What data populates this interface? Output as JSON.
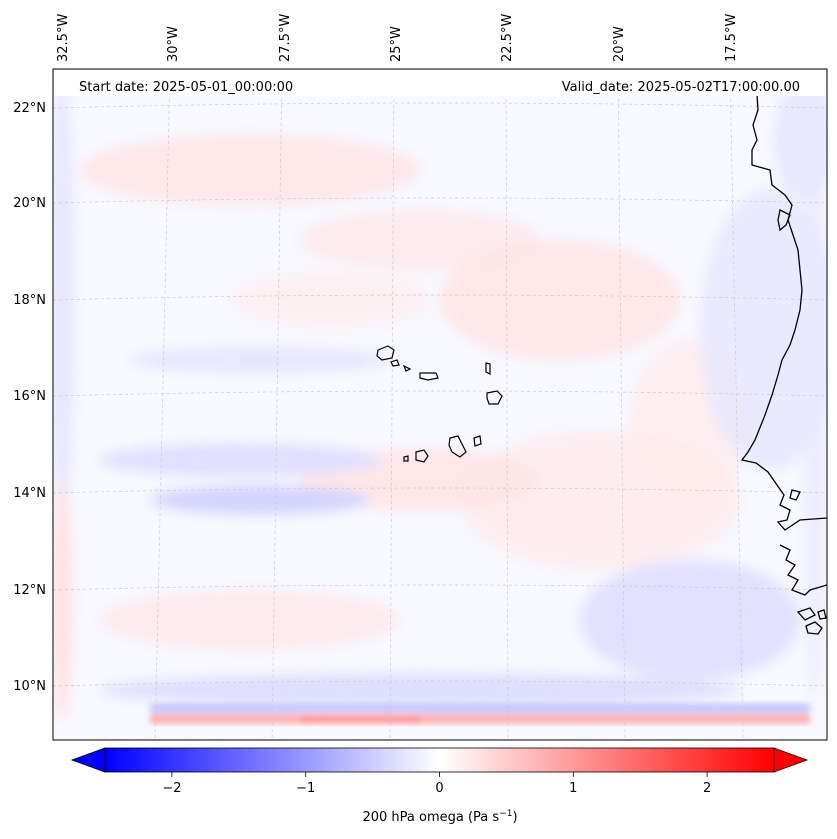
{
  "header": {
    "start_date": "Start date: 2025-05-01_00:00:00",
    "valid_date": "Valid_date: 2025-05-02T17:00:00.00"
  },
  "map": {
    "lon_labels": [
      "32.5°W",
      "30°W",
      "27.5°W",
      "25°W",
      "22.5°W",
      "20°W",
      "17.5°W"
    ],
    "lat_labels": [
      "22°N",
      "20°N",
      "18°N",
      "16°N",
      "14°N",
      "12°N",
      "10°N"
    ],
    "grid": true,
    "coastline_color": "#000000"
  },
  "colorbar": {
    "label_prefix": "200 hPa omega (Pa s",
    "label_exp": "−1",
    "label_suffix": ")",
    "tick_labels": [
      "−2",
      "−1",
      "0",
      "1",
      "2"
    ],
    "tick_values": [
      -2,
      -1,
      0,
      1,
      2
    ],
    "range": [
      -2.5,
      2.5
    ],
    "cmap_low": "#0000ff",
    "cmap_mid": "#ffffff",
    "cmap_high": "#ff0000",
    "extend": "both"
  }
}
